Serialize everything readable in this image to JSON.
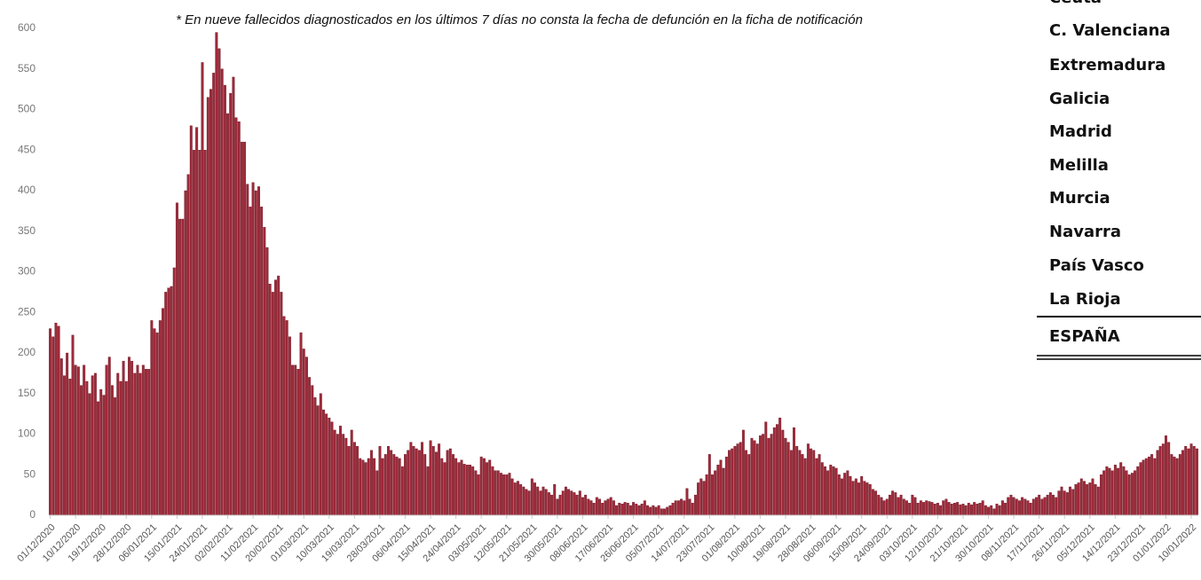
{
  "chart_data": {
    "type": "bar",
    "annotation": "* En nueve fallecidos diagnosticados en los últimos 7 días no consta la fecha de defunción en la ficha de notificación",
    "color": "#9e2a3a",
    "ylim": [
      0,
      600
    ],
    "yticks": [
      0,
      50,
      100,
      150,
      200,
      250,
      300,
      350,
      400,
      450,
      500,
      550,
      600
    ],
    "categories": [
      "01/12/2020",
      null,
      null,
      null,
      null,
      null,
      null,
      null,
      null,
      "10/12/2020",
      null,
      null,
      null,
      null,
      null,
      null,
      null,
      null,
      "19/12/2020",
      null,
      null,
      null,
      null,
      null,
      null,
      null,
      null,
      "28/12/2020",
      null,
      null,
      null,
      null,
      null,
      null,
      null,
      null,
      "06/01/2021",
      null,
      null,
      null,
      null,
      null,
      null,
      null,
      null,
      "15/01/2021",
      null,
      null,
      null,
      null,
      null,
      null,
      null,
      null,
      "24/01/2021",
      null,
      null,
      null,
      null,
      null,
      null,
      null,
      null,
      "02/02/2021",
      null,
      null,
      null,
      null,
      null,
      null,
      null,
      null,
      "11/02/2021",
      null,
      null,
      null,
      null,
      null,
      null,
      null,
      null,
      "20/02/2021",
      null,
      null,
      null,
      null,
      null,
      null,
      null,
      null,
      "01/03/2021",
      null,
      null,
      null,
      null,
      null,
      null,
      null,
      null,
      "10/03/2021",
      null,
      null,
      null,
      null,
      null,
      null,
      null,
      null,
      "19/03/2021",
      null,
      null,
      null,
      null,
      null,
      null,
      null,
      null,
      "28/03/2021",
      null,
      null,
      null,
      null,
      null,
      null,
      null,
      null,
      "06/04/2021",
      null,
      null,
      null,
      null,
      null,
      null,
      null,
      null,
      "15/04/2021",
      null,
      null,
      null,
      null,
      null,
      null,
      null,
      null,
      "24/04/2021",
      null,
      null,
      null,
      null,
      null,
      null,
      null,
      null,
      "03/05/2021",
      null,
      null,
      null,
      null,
      null,
      null,
      null,
      null,
      "12/05/2021",
      null,
      null,
      null,
      null,
      null,
      null,
      null,
      null,
      "21/05/2021",
      null,
      null,
      null,
      null,
      null,
      null,
      null,
      null,
      "30/05/2021",
      null,
      null,
      null,
      null,
      null,
      null,
      null,
      null,
      "08/06/2021",
      null,
      null,
      null,
      null,
      null,
      null,
      null,
      null,
      "17/06/2021",
      null,
      null,
      null,
      null,
      null,
      null,
      null,
      null,
      "26/06/2021",
      null,
      null,
      null,
      null,
      null,
      null,
      null,
      null,
      "05/07/2021",
      null,
      null,
      null,
      null,
      null,
      null,
      null,
      null,
      "14/07/2021",
      null,
      null,
      null,
      null,
      null,
      null,
      null,
      null,
      "23/07/2021",
      null,
      null,
      null,
      null,
      null,
      null,
      null,
      null,
      "01/08/2021",
      null,
      null,
      null,
      null,
      null,
      null,
      null,
      null,
      "10/08/2021",
      null,
      null,
      null,
      null,
      null,
      null,
      null,
      null,
      "19/08/2021",
      null,
      null,
      null,
      null,
      null,
      null,
      null,
      null,
      "28/08/2021",
      null,
      null,
      null,
      null,
      null,
      null,
      null,
      null,
      "06/09/2021",
      null,
      null,
      null,
      null,
      null,
      null,
      null,
      null,
      "15/09/2021",
      null,
      null,
      null,
      null,
      null,
      null,
      null,
      null,
      "24/09/2021",
      null,
      null,
      null,
      null,
      null,
      null,
      null,
      null,
      "03/10/2021",
      null,
      null,
      null,
      null,
      null,
      null,
      null,
      null,
      "12/10/2021",
      null,
      null,
      null,
      null,
      null,
      null,
      null,
      null,
      "21/10/2021",
      null,
      null,
      null,
      null,
      null,
      null,
      null,
      null,
      "30/10/2021",
      null,
      null,
      null,
      null,
      null,
      null,
      null,
      null,
      "08/11/2021",
      null,
      null,
      null,
      null,
      null,
      null,
      null,
      null,
      "17/11/2021",
      null,
      null,
      null,
      null,
      null,
      null,
      null,
      null,
      "26/11/2021",
      null,
      null,
      null,
      null,
      null,
      null,
      null,
      null,
      "05/12/2021",
      null,
      null,
      null,
      null,
      null,
      null,
      null,
      null,
      "14/12/2021",
      null,
      null,
      null,
      null,
      null,
      null,
      null,
      null,
      "23/12/2021",
      null,
      null,
      null,
      null,
      null,
      null,
      null,
      null,
      "01/01/2022",
      null,
      null,
      null,
      null,
      null,
      null,
      null,
      null,
      "10/01/2022",
      null,
      null
    ],
    "values": [
      230,
      220,
      237,
      233,
      193,
      172,
      200,
      168,
      222,
      185,
      183,
      160,
      185,
      165,
      150,
      172,
      175,
      140,
      155,
      148,
      185,
      195,
      160,
      145,
      175,
      165,
      190,
      165,
      195,
      190,
      175,
      185,
      175,
      185,
      180,
      180,
      240,
      230,
      225,
      240,
      255,
      275,
      280,
      282,
      305,
      385,
      365,
      365,
      400,
      420,
      480,
      450,
      478,
      450,
      558,
      450,
      515,
      525,
      545,
      595,
      575,
      550,
      530,
      495,
      520,
      540,
      490,
      485,
      460,
      460,
      408,
      380,
      410,
      400,
      405,
      380,
      355,
      330,
      285,
      275,
      290,
      295,
      275,
      245,
      240,
      220,
      185,
      185,
      180,
      225,
      205,
      195,
      170,
      160,
      145,
      135,
      150,
      130,
      125,
      120,
      115,
      105,
      100,
      110,
      100,
      95,
      85,
      105,
      90,
      85,
      70,
      68,
      65,
      70,
      80,
      70,
      55,
      85,
      70,
      75,
      85,
      80,
      75,
      72,
      70,
      60,
      75,
      80,
      90,
      85,
      82,
      80,
      90,
      75,
      60,
      92,
      85,
      78,
      88,
      70,
      65,
      80,
      82,
      75,
      70,
      65,
      68,
      63,
      62,
      62,
      60,
      55,
      50,
      72,
      70,
      65,
      68,
      60,
      55,
      55,
      52,
      50,
      50,
      52,
      45,
      40,
      42,
      38,
      35,
      32,
      30,
      45,
      40,
      35,
      30,
      35,
      32,
      28,
      25,
      38,
      20,
      25,
      30,
      35,
      32,
      30,
      28,
      25,
      30,
      22,
      25,
      20,
      18,
      15,
      22,
      20,
      15,
      18,
      20,
      22,
      18,
      12,
      15,
      14,
      16,
      15,
      12,
      16,
      14,
      12,
      14,
      18,
      12,
      10,
      12,
      10,
      12,
      8,
      8,
      10,
      12,
      15,
      18,
      18,
      20,
      18,
      33,
      20,
      15,
      25,
      40,
      45,
      42,
      50,
      75,
      50,
      55,
      62,
      68,
      58,
      72,
      80,
      82,
      85,
      88,
      90,
      105,
      80,
      75,
      95,
      92,
      88,
      98,
      100,
      115,
      95,
      100,
      108,
      112,
      120,
      105,
      95,
      90,
      80,
      108,
      85,
      80,
      75,
      70,
      88,
      82,
      80,
      70,
      75,
      65,
      60,
      55,
      62,
      60,
      58,
      50,
      45,
      52,
      55,
      48,
      42,
      45,
      40,
      48,
      42,
      40,
      38,
      32,
      30,
      25,
      22,
      18,
      20,
      25,
      30,
      28,
      22,
      25,
      20,
      18,
      15,
      25,
      22,
      15,
      18,
      16,
      18,
      17,
      16,
      14,
      15,
      12,
      18,
      20,
      16,
      14,
      15,
      16,
      13,
      14,
      12,
      15,
      13,
      16,
      14,
      15,
      18,
      12,
      10,
      12,
      8,
      14,
      12,
      18,
      15,
      22,
      25,
      22,
      20,
      18,
      22,
      20,
      18,
      15,
      20,
      22,
      25,
      20,
      22,
      25,
      28,
      25,
      22,
      30,
      35,
      30,
      28,
      35,
      32,
      38,
      40,
      45,
      42,
      38,
      40,
      45,
      38,
      35,
      50,
      55,
      60,
      58,
      55,
      62,
      58,
      65,
      60,
      55,
      50,
      52,
      55,
      60,
      65,
      68,
      70,
      72,
      75,
      70,
      80,
      85,
      88,
      98,
      90,
      75,
      72,
      70,
      75,
      80,
      85,
      82,
      88,
      85,
      82
    ]
  },
  "table": {
    "rows": [
      "Ceuta",
      "C. Valenciana",
      "Extremadura",
      "Galicia",
      "Madrid",
      "Melilla",
      "Murcia",
      "Navarra",
      "País Vasco",
      "La Rioja",
      "ESPAÑA"
    ]
  }
}
